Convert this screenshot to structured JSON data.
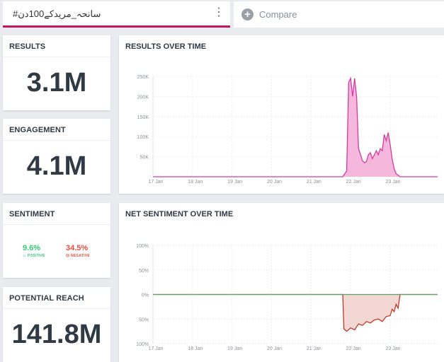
{
  "search": {
    "query": "#سانحہ_مریدکے100دن",
    "menu_icon": "kebab-menu-icon"
  },
  "compare": {
    "label": "Compare",
    "icon": "plus-circle-icon"
  },
  "results": {
    "title": "RESULTS",
    "value": "3.1M"
  },
  "engagement": {
    "title": "ENGAGEMENT",
    "value": "4.1M"
  },
  "sentiment": {
    "title": "SENTIMENT",
    "positive": {
      "value": "9.6%",
      "label": "POSITIVE",
      "color": "#2ecc71"
    },
    "negative": {
      "value": "34.5%",
      "label": "NEGATIVE",
      "color": "#e74c3c"
    }
  },
  "reach": {
    "title": "POTENTIAL REACH",
    "value": "141.8M"
  },
  "chart_data": [
    {
      "type": "area",
      "title": "RESULTS OVER TIME",
      "xlabel": "",
      "ylabel": "",
      "x_ticks": [
        "17 Jan",
        "18 Jan",
        "19 Jan",
        "20 Jan",
        "21 Jan",
        "22 Jan",
        "23 Jan"
      ],
      "y_ticks": [
        "50K",
        "100K",
        "150K",
        "200K",
        "250K"
      ],
      "ylim": [
        0,
        250000
      ],
      "xlim": [
        0,
        7.2
      ],
      "series": [
        {
          "name": "Results",
          "color": "#d63aa0",
          "fill": "#f5b8dc",
          "x": [
            0,
            1,
            2,
            3,
            4,
            4.8,
            4.9,
            4.95,
            5.0,
            5.05,
            5.1,
            5.15,
            5.2,
            5.25,
            5.3,
            5.35,
            5.4,
            5.45,
            5.5,
            5.55,
            5.6,
            5.65,
            5.7,
            5.75,
            5.8,
            5.85,
            5.9,
            5.95,
            6.0,
            6.05,
            6.1,
            6.15,
            6.25,
            6.5,
            7.2
          ],
          "values": [
            0,
            0,
            0,
            0,
            0,
            0,
            15000,
            235000,
            245000,
            200000,
            245000,
            200000,
            70000,
            55000,
            40000,
            35000,
            38000,
            55000,
            60000,
            45000,
            55000,
            65000,
            55000,
            70000,
            65000,
            105000,
            90000,
            110000,
            80000,
            45000,
            20000,
            8000,
            0,
            0,
            0
          ]
        }
      ]
    },
    {
      "type": "area",
      "title": "NET SENTIMENT OVER TIME",
      "xlabel": "",
      "ylabel": "",
      "x_ticks": [
        "17 Jan",
        "18 Jan",
        "19 Jan",
        "20 Jan",
        "21 Jan",
        "22 Jan",
        "23 Jan"
      ],
      "y_ticks": [
        "100%",
        "50%",
        "0%",
        "50%",
        "100%"
      ],
      "ylim": [
        -100,
        100
      ],
      "xlim": [
        0,
        7.2
      ],
      "series": [
        {
          "name": "Net sentiment",
          "color": "#c0392b",
          "fill": "#f2d7d3",
          "x": [
            0,
            4.8,
            4.83,
            4.9,
            5.0,
            5.1,
            5.2,
            5.3,
            5.4,
            5.5,
            5.6,
            5.7,
            5.8,
            5.9,
            6.0,
            6.05,
            6.1,
            6.15,
            6.2,
            6.25,
            7.2
          ],
          "values": [
            0,
            0,
            -70,
            -75,
            -68,
            -72,
            -60,
            -63,
            -55,
            -58,
            -52,
            -50,
            -55,
            -45,
            -43,
            -30,
            -35,
            -20,
            -28,
            0,
            0
          ]
        },
        {
          "name": "Baseline",
          "color": "#5aa469",
          "x": [
            0,
            7.2
          ],
          "values": [
            0,
            0
          ]
        }
      ]
    }
  ]
}
